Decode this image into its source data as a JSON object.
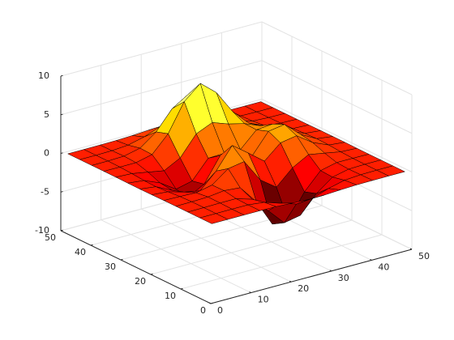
{
  "chart_data": {
    "type": "surface",
    "x": [
      1,
      5,
      9,
      13,
      17,
      21,
      25,
      29,
      33,
      37,
      41,
      45,
      49
    ],
    "y": [
      1,
      5,
      9,
      13,
      17,
      21,
      25,
      29,
      33,
      37,
      41,
      45,
      49
    ],
    "z": [
      [
        0,
        0,
        0,
        0,
        -0.03,
        -0.14,
        -0.24,
        -0.22,
        -0.11,
        -0.03,
        -0.01,
        0,
        0
      ],
      [
        0,
        0,
        0.01,
        0,
        -0.23,
        -0.92,
        -1.57,
        -1.41,
        -0.69,
        -0.18,
        -0.03,
        0,
        0
      ],
      [
        0,
        0.01,
        0.05,
        0.05,
        -0.59,
        -2.63,
        -4.75,
        -4.34,
        -2.1,
        -0.53,
        -0.06,
        0,
        0
      ],
      [
        0,
        0.01,
        0.08,
        0.33,
        0.15,
        -2.19,
        -5.68,
        -5.76,
        -2.63,
        -0.44,
        0.04,
        0.03,
        0
      ],
      [
        -0.01,
        -0.06,
        -0.13,
        0.3,
        1.86,
        2.22,
        -0.72,
        -2.22,
        -0.27,
        0.88,
        0.5,
        0.11,
        0.01
      ],
      [
        -0.03,
        -0.2,
        -0.8,
        -1.21,
        0.8,
        3.55,
        2.0,
        0.39,
        2.2,
        2.56,
        1.12,
        0.24,
        0.03
      ],
      [
        -0.04,
        -0.3,
        -1.33,
        -2.77,
        -1.65,
        1.48,
        0.98,
        0.37,
        2.94,
        3.27,
        1.41,
        0.3,
        0.03
      ],
      [
        -0.03,
        -0.25,
        -1.12,
        -2.49,
        -2.0,
        0.39,
        0.46,
        0.38,
        2.38,
        2.56,
        1.09,
        0.23,
        0.03
      ],
      [
        -0.01,
        -0.11,
        -0.48,
        -0.86,
        0.23,
        2.79,
        3.69,
        2.94,
        2.43,
        1.58,
        0.58,
        0.11,
        0.01
      ],
      [
        0,
        -0.02,
        -0.01,
        0.48,
        2.61,
        6.2,
        8.0,
        6.25,
        3.25,
        1.19,
        0.29,
        0.05,
        0
      ],
      [
        0,
        0.01,
        0.08,
        0.55,
        2.09,
        4.55,
        5.85,
        4.56,
        2.21,
        0.68,
        0.13,
        0.02,
        0
      ],
      [
        0,
        0,
        0.03,
        0.19,
        0.69,
        1.47,
        1.88,
        1.47,
        0.7,
        0.2,
        0.04,
        0,
        0
      ],
      [
        0,
        0,
        0.01,
        0.03,
        0.11,
        0.23,
        0.3,
        0.23,
        0.11,
        0.03,
        0.01,
        0,
        0
      ]
    ],
    "colormap": "hot",
    "edgecolor": "#000000",
    "xlim": [
      0,
      50
    ],
    "ylim": [
      0,
      50
    ],
    "zlim": [
      -10,
      10
    ],
    "xticks": [
      0,
      10,
      20,
      30,
      40,
      50
    ],
    "yticks": [
      0,
      10,
      20,
      30,
      40,
      50
    ],
    "zticks": [
      -10,
      -5,
      0,
      5,
      10
    ],
    "grid": true
  }
}
